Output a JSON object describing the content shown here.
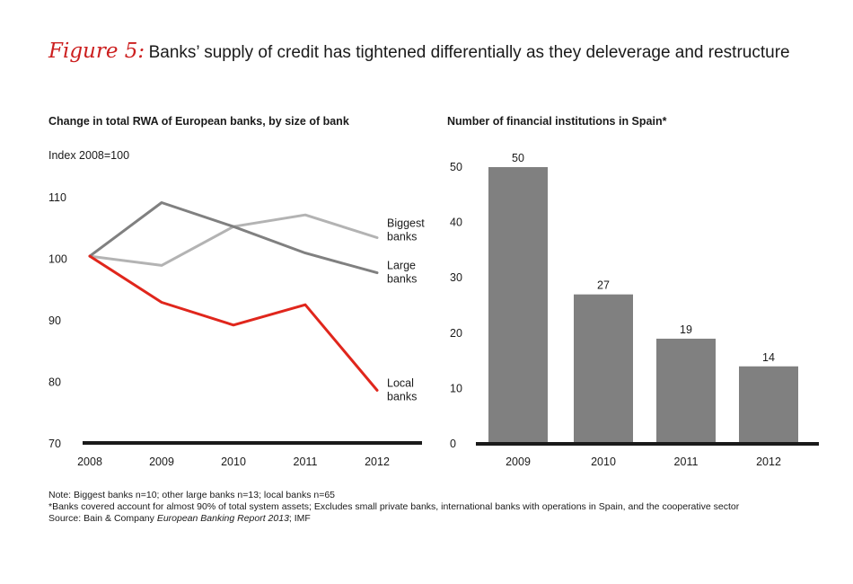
{
  "figure": {
    "label": "Figure 5:",
    "title": "Banks’ supply of credit has tightened differentially as they deleverage and restructure"
  },
  "chart_data": [
    {
      "type": "line",
      "title": "Change in total RWA of European banks, by size of bank",
      "unit_label": "Index 2008=100",
      "x": [
        "2008",
        "2009",
        "2010",
        "2011",
        "2012"
      ],
      "ylim": [
        70,
        110
      ],
      "yticks": [
        70,
        80,
        90,
        100,
        110
      ],
      "grid": false,
      "series": [
        {
          "name": "Biggest banks",
          "label_lines": [
            "Biggest",
            "banks"
          ],
          "color": "#b3b3b3",
          "values": [
            100.5,
            99,
            105.3,
            107.2,
            103.5
          ]
        },
        {
          "name": "Large banks",
          "label_lines": [
            "Large",
            "banks"
          ],
          "color": "#808080",
          "values": [
            100.5,
            109.2,
            105.3,
            101,
            97.8
          ]
        },
        {
          "name": "Local banks",
          "label_lines": [
            "Local",
            "banks"
          ],
          "color": "#e0261c",
          "values": [
            100.5,
            93,
            89.3,
            92.6,
            78.7
          ]
        }
      ]
    },
    {
      "type": "bar",
      "title": "Number of financial institutions in Spain*",
      "categories": [
        "2009",
        "2010",
        "2011",
        "2012"
      ],
      "values": [
        50,
        27,
        19,
        14
      ],
      "ylim": [
        0,
        50
      ],
      "yticks": [
        0,
        10,
        20,
        30,
        40,
        50
      ],
      "bar_color": "#808080",
      "grid": false
    }
  ],
  "notes": [
    "Note: Biggest banks n=10; other large banks n=13; local banks n=65",
    "*Banks covered account for almost 90% of total system assets; Excludes small private banks, international banks with operations in Spain, and the cooperative sector"
  ],
  "source": {
    "prefix": "Source: Bain & Company ",
    "italic": "European Banking Report 2013",
    "suffix": "; IMF"
  }
}
